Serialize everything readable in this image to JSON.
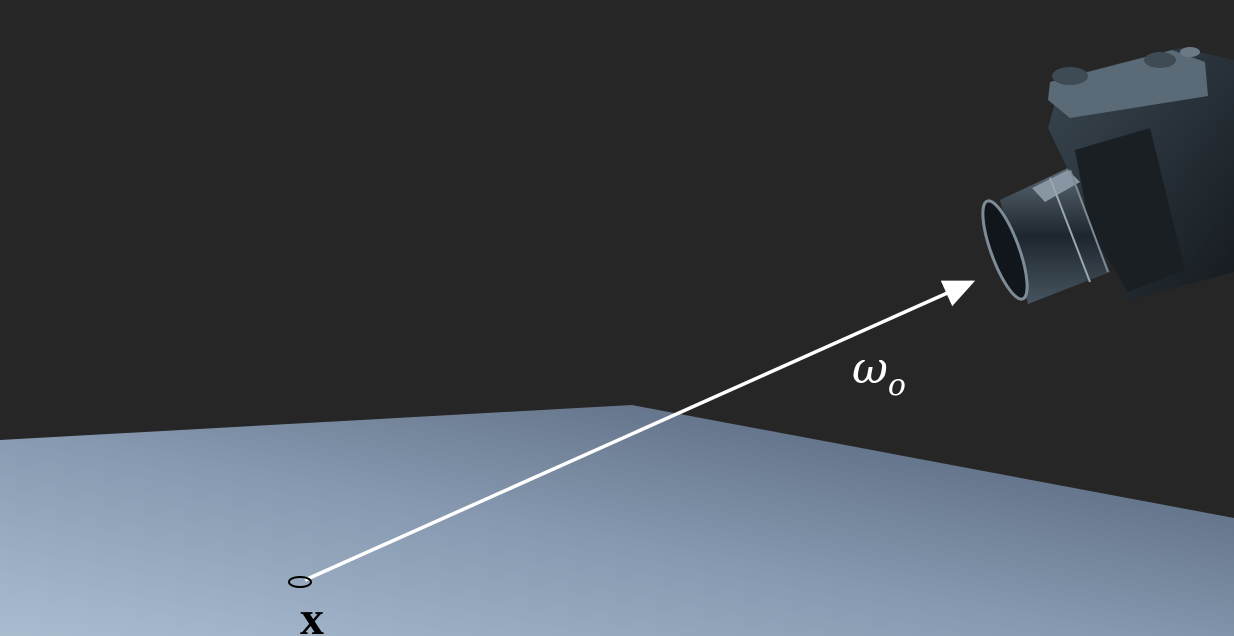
{
  "labels": {
    "point": "x",
    "direction_symbol": "ω",
    "direction_subscript": "o"
  },
  "colors": {
    "background": "#262626",
    "arrow": "#ffffff",
    "label": "#ffffff",
    "point_label": "#000000"
  },
  "icons": {
    "camera": "camera-icon"
  }
}
